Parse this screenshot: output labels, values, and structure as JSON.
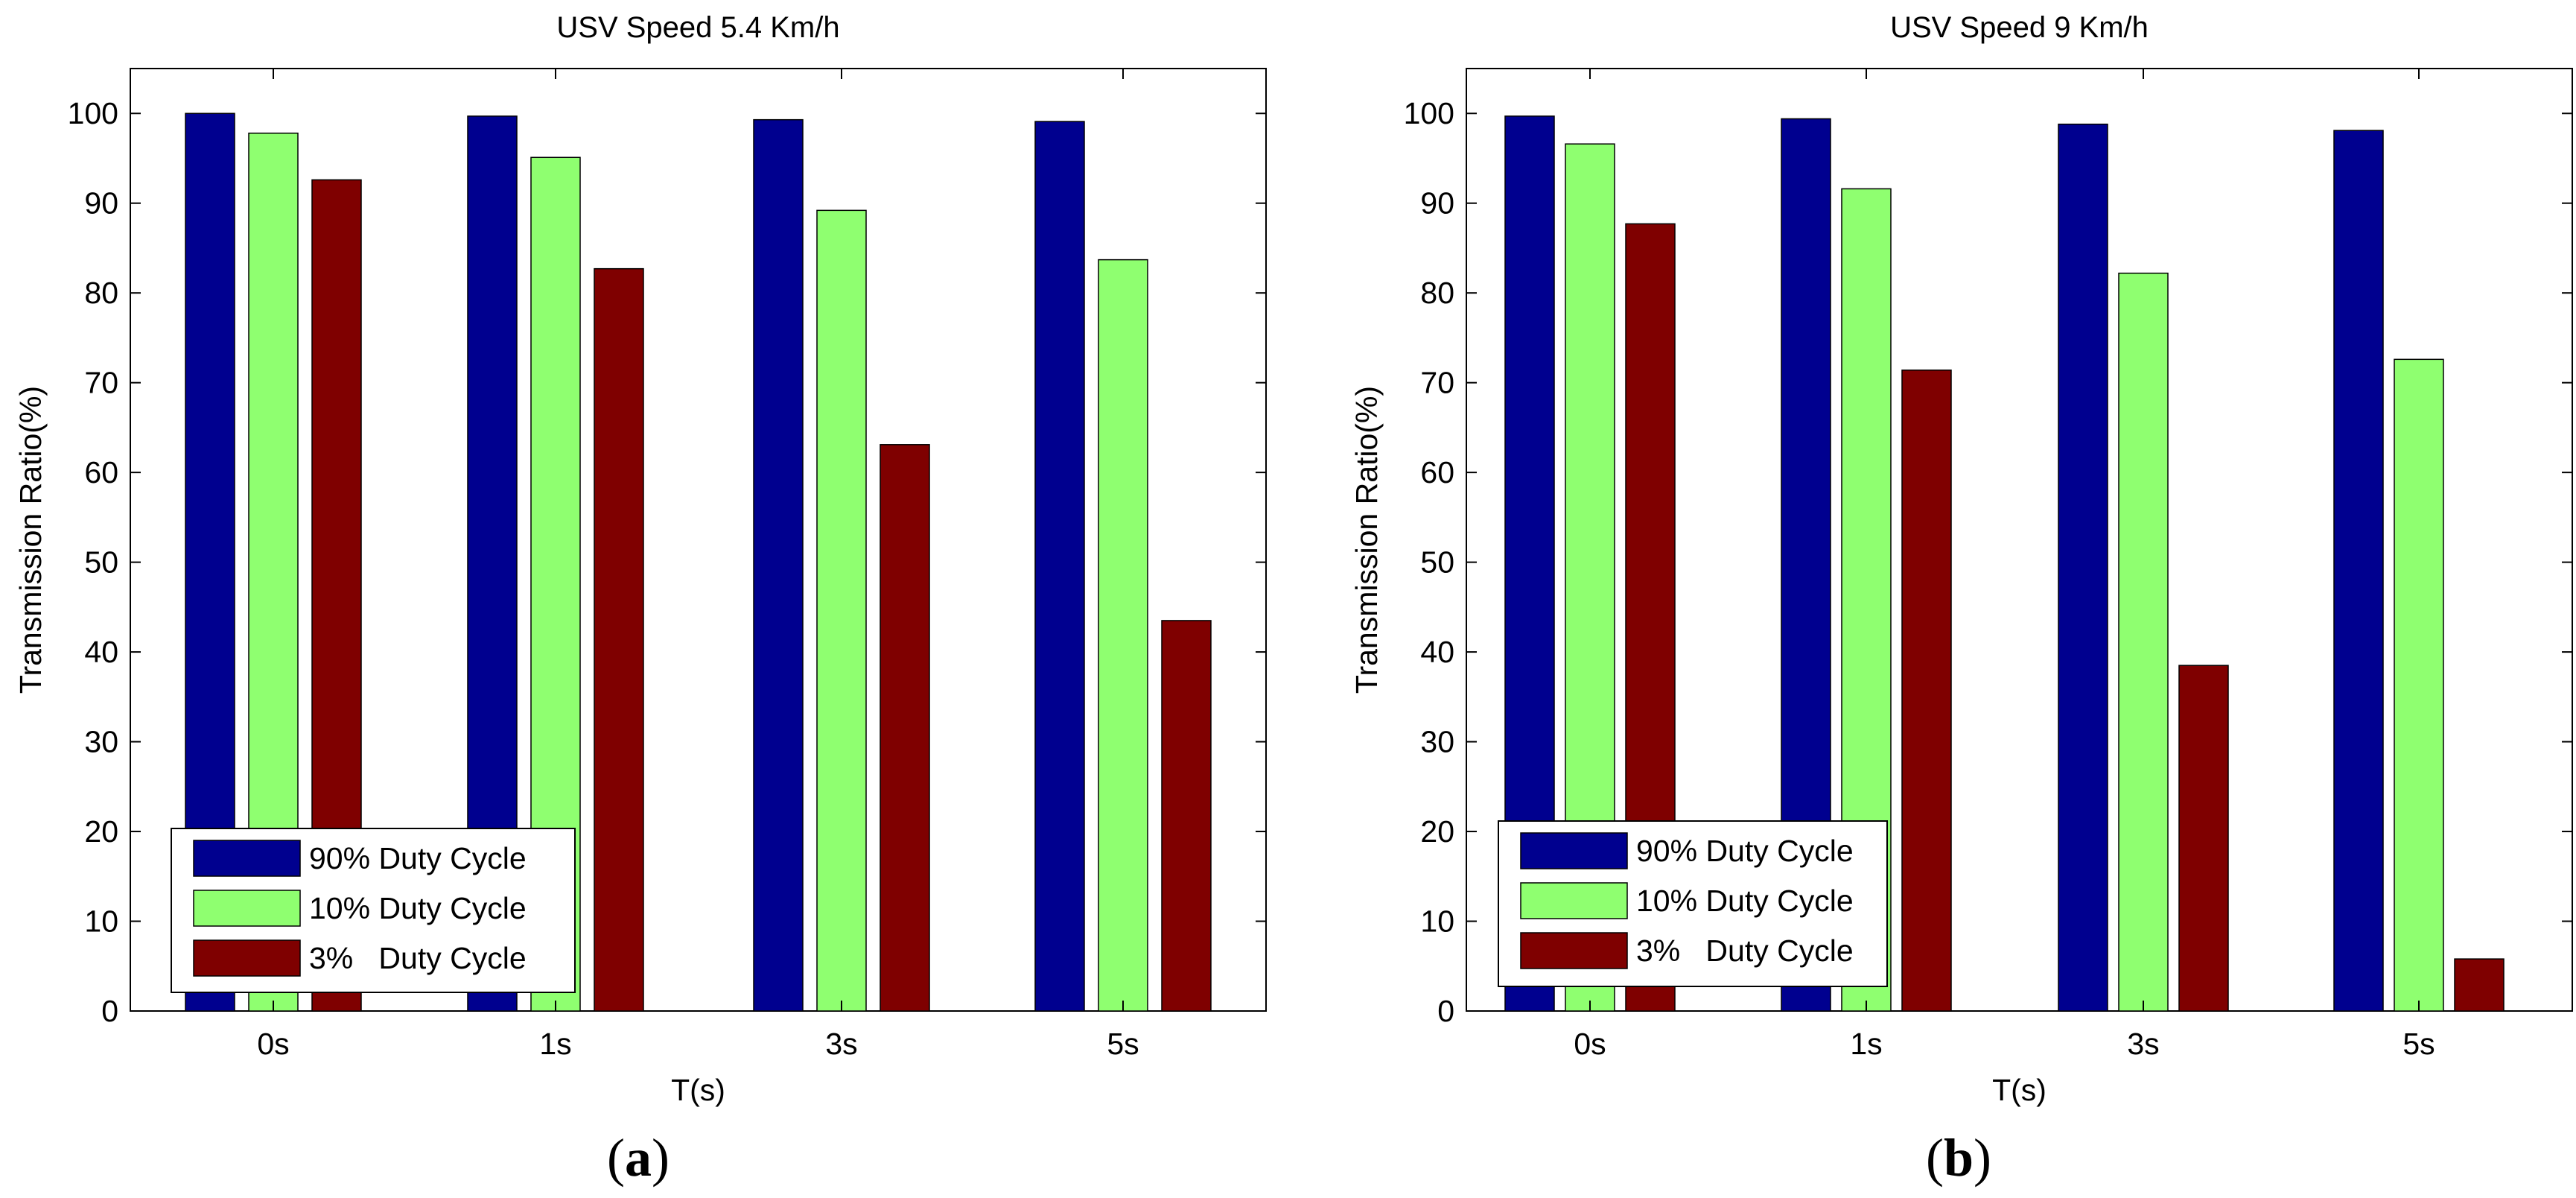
{
  "chart_data": [
    {
      "type": "bar",
      "title": "USV Speed 5.4 Km/h",
      "xlabel": "T(s)",
      "ylabel": "Transmission Ratio(%)",
      "categories": [
        "0s",
        "1s",
        "3s",
        "5s"
      ],
      "ylim": [
        0,
        105
      ],
      "yticks": [
        0,
        10,
        20,
        30,
        40,
        50,
        60,
        70,
        80,
        90,
        100
      ],
      "grid": false,
      "legend_position": "bottom-left",
      "series": [
        {
          "name": "90% Duty Cycle",
          "color": "#00008f",
          "values": [
            100,
            99.7,
            99.3,
            99.1
          ]
        },
        {
          "name": "10% Duty Cycle",
          "color": "#8fff70",
          "values": [
            97.8,
            95.1,
            89.2,
            83.7
          ]
        },
        {
          "name": "3%   Duty Cycle",
          "color": "#7f0000",
          "values": [
            92.6,
            82.7,
            63.1,
            43.5
          ]
        }
      ],
      "caption": {
        "open": "(",
        "letter": "a",
        "close": ")"
      }
    },
    {
      "type": "bar",
      "title": "USV Speed 9 Km/h",
      "xlabel": "T(s)",
      "ylabel": "Transmission Ratio(%)",
      "categories": [
        "0s",
        "1s",
        "3s",
        "5s"
      ],
      "ylim": [
        0,
        105
      ],
      "yticks": [
        0,
        10,
        20,
        30,
        40,
        50,
        60,
        70,
        80,
        90,
        100
      ],
      "grid": false,
      "legend_position": "bottom-left",
      "series": [
        {
          "name": "90% Duty Cycle",
          "color": "#00008f",
          "values": [
            99.7,
            99.4,
            98.8,
            98.1
          ]
        },
        {
          "name": "10% Duty Cycle",
          "color": "#8fff70",
          "values": [
            96.6,
            91.6,
            82.2,
            72.6
          ]
        },
        {
          "name": "3%   Duty Cycle",
          "color": "#7f0000",
          "values": [
            87.7,
            71.4,
            38.5,
            5.8
          ]
        }
      ],
      "caption": {
        "open": "(",
        "letter": "b",
        "close": ")"
      }
    }
  ]
}
